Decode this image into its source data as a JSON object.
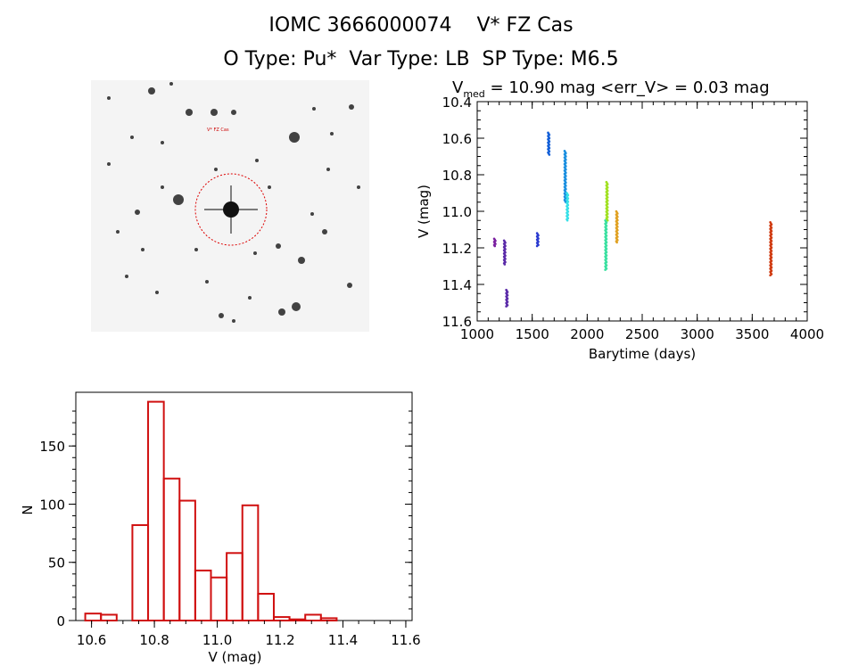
{
  "header": {
    "title_line1": "IOMC 3666000074    V* FZ Cas",
    "title_line2": "O Type: Pu*  Var Type: LB  SP Type: M6.5"
  },
  "finder_chart": {
    "label_target": "V* FZ Cas",
    "background": "#f4f4f4",
    "star_color": "#111111",
    "circle_color": "#dd0000"
  },
  "chart_data": [
    {
      "type": "scatter",
      "title_prefix": "V",
      "title_subscript": "med",
      "title_rest": " = 10.90 mag <err_V> = 0.03 mag",
      "xlabel": "Barytime (days)",
      "ylabel": "V (mag)",
      "xlim": [
        1000,
        4000
      ],
      "ylim": [
        10.4,
        11.6
      ],
      "y_inverted": true,
      "x_ticks": [
        1000,
        1500,
        2000,
        2500,
        3000,
        3500,
        4000
      ],
      "y_ticks": [
        "10.4",
        "10.6",
        "10.8",
        "11.0",
        "11.2",
        "11.4",
        "11.6"
      ],
      "series": [
        {
          "color": "#7a1fa0",
          "x": 1160,
          "y_min": 11.15,
          "y_max": 11.19
        },
        {
          "color": "#5a2aa8",
          "x": 1250,
          "y_min": 11.16,
          "y_max": 11.29
        },
        {
          "color": "#5a2aa8",
          "x": 1270,
          "y_min": 11.43,
          "y_max": 11.52
        },
        {
          "color": "#2a3bd0",
          "x": 1550,
          "y_min": 11.12,
          "y_max": 11.19
        },
        {
          "color": "#1560d8",
          "x": 1650,
          "y_min": 10.57,
          "y_max": 10.69
        },
        {
          "color": "#1a8fe0",
          "x": 1800,
          "y_min": 10.67,
          "y_max": 10.95
        },
        {
          "color": "#38e0e8",
          "x": 1820,
          "y_min": 10.9,
          "y_max": 11.05
        },
        {
          "color": "#a0e020",
          "x": 2180,
          "y_min": 10.84,
          "y_max": 11.05
        },
        {
          "color": "#3ae0a0",
          "x": 2170,
          "y_min": 11.05,
          "y_max": 11.32
        },
        {
          "color": "#e0a020",
          "x": 2270,
          "y_min": 11.0,
          "y_max": 11.17
        },
        {
          "color": "#d03a10",
          "x": 3670,
          "y_min": 11.06,
          "y_max": 11.35
        }
      ]
    },
    {
      "type": "bar",
      "xlabel": "V (mag)",
      "ylabel": "N",
      "xlim": [
        10.55,
        11.62
      ],
      "ylim": [
        0,
        190
      ],
      "x_ticks": [
        "10.6",
        "10.8",
        "11.0",
        "11.2",
        "11.4",
        "11.6"
      ],
      "y_ticks": [
        "0",
        "50",
        "100",
        "150"
      ],
      "bin_width": 0.05,
      "bin_starts": [
        10.58,
        10.63,
        10.68,
        10.73,
        10.78,
        10.83,
        10.88,
        10.93,
        10.98,
        11.03,
        11.08,
        11.13,
        11.18,
        11.23,
        11.28,
        11.33,
        11.38,
        11.43,
        11.48
      ],
      "values": [
        6,
        5,
        0,
        82,
        188,
        122,
        103,
        43,
        37,
        58,
        99,
        23,
        3,
        1,
        5,
        2,
        0,
        0,
        0
      ],
      "bar_color": "#d01010"
    }
  ]
}
